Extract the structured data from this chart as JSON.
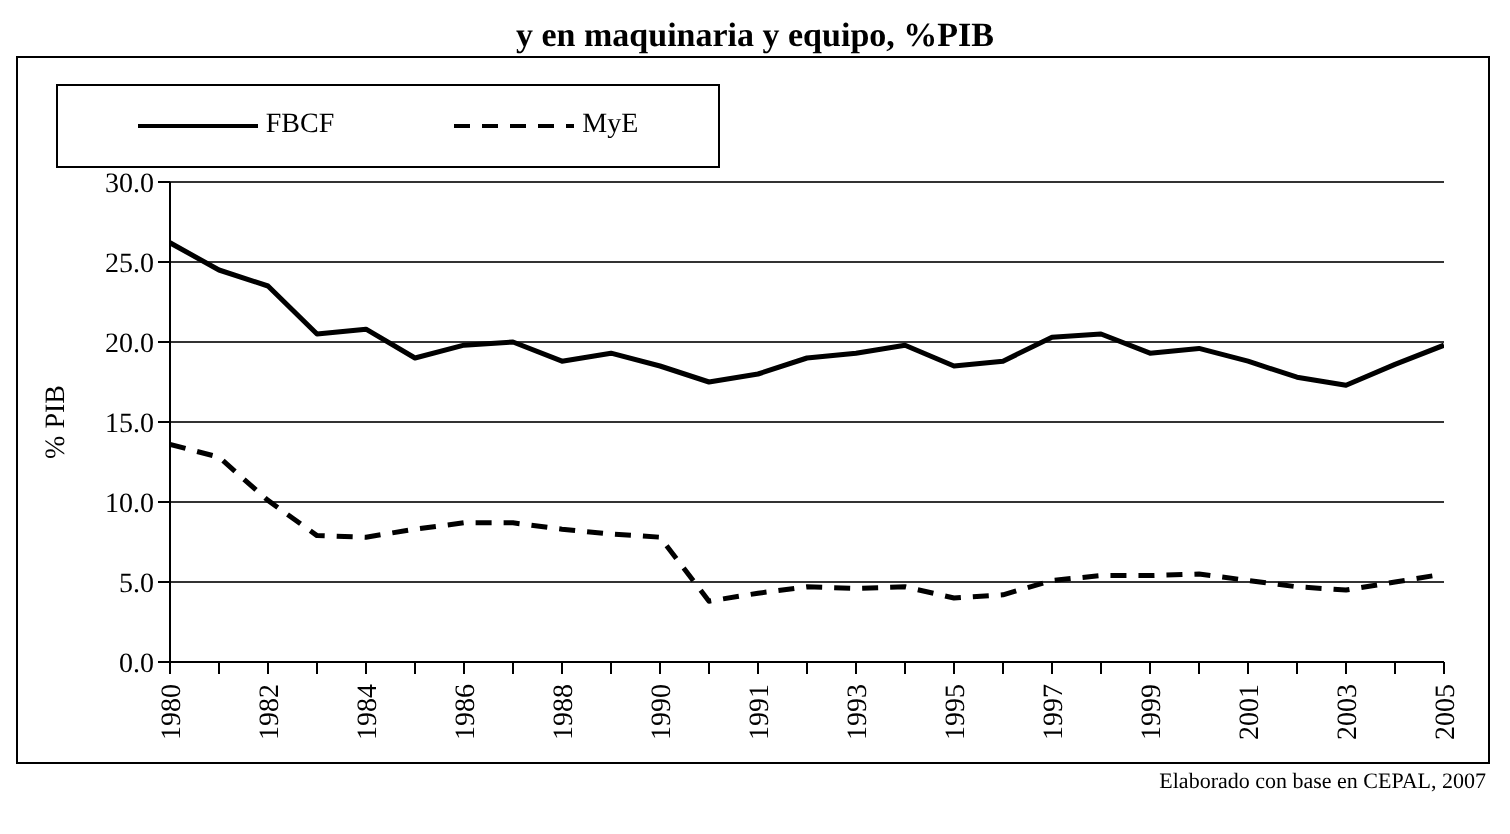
{
  "chart_data": {
    "type": "line",
    "title": "y en maquinaria y equipo, %PIB",
    "ylabel": "% PIB",
    "categories": [
      "1980",
      null,
      "1982",
      null,
      "1984",
      null,
      "1986",
      null,
      "1988",
      null,
      "1990",
      null,
      "1991",
      null,
      "1993",
      null,
      "1995",
      null,
      "1997",
      null,
      "1999",
      null,
      "2001",
      null,
      "2003",
      null,
      "2005"
    ],
    "series": [
      {
        "name": "FBCF",
        "color": "#000000",
        "line_style": "solid",
        "values": [
          26.2,
          24.5,
          23.5,
          20.5,
          20.8,
          19.0,
          19.8,
          20.0,
          18.8,
          19.3,
          18.5,
          17.5,
          18.0,
          19.0,
          19.3,
          19.8,
          18.5,
          18.8,
          20.3,
          20.5,
          19.3,
          19.6,
          18.8,
          17.8,
          17.3,
          18.6,
          19.8
        ]
      },
      {
        "name": "MyE",
        "color": "#000000",
        "line_style": "dashed",
        "values": [
          13.6,
          12.8,
          10.1,
          7.9,
          7.8,
          8.3,
          8.7,
          8.7,
          8.3,
          8.0,
          7.8,
          3.8,
          4.3,
          4.7,
          4.6,
          4.7,
          4.0,
          4.2,
          5.1,
          5.4,
          5.4,
          5.5,
          5.1,
          4.7,
          4.5,
          5.0,
          5.5
        ]
      }
    ],
    "ylim": [
      0,
      30
    ],
    "yticks": [
      {
        "value": 0,
        "label": "0.0"
      },
      {
        "value": 5,
        "label": "5.0"
      },
      {
        "value": 10,
        "label": "10.0"
      },
      {
        "value": 15,
        "label": "15.0"
      },
      {
        "value": 20,
        "label": "20.0"
      },
      {
        "value": 25,
        "label": "25.0"
      },
      {
        "value": 30,
        "label": "30.0"
      }
    ],
    "grid": "y",
    "legend": "top",
    "marker": "none",
    "annotations": [
      "Elaborado con base en CEPAL, 2007"
    ]
  }
}
